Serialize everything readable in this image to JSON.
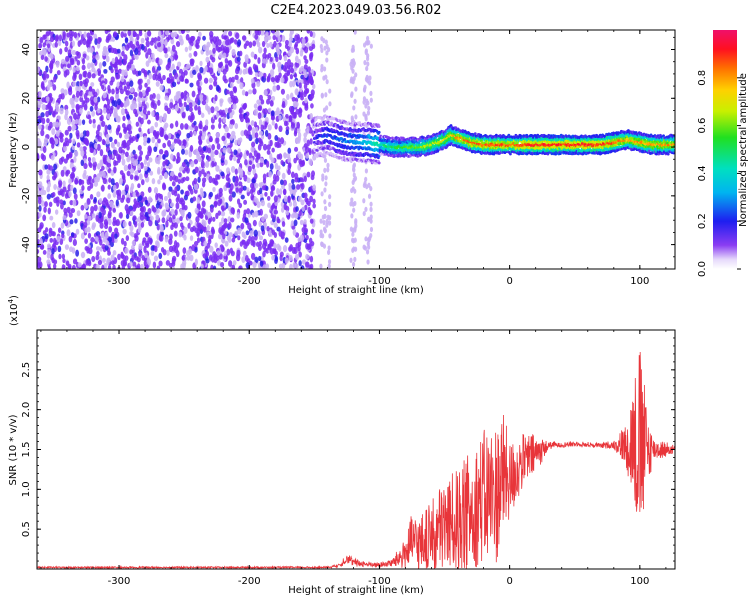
{
  "title": "C2E4.2023.049.03.56.R02",
  "colors": {
    "spectrum_dot": "#7a2cf2",
    "spectrum_dot_light": "#c9b0f5",
    "snr_line": "#e8353a",
    "axis": "#000000"
  },
  "colorbar": {
    "label": "Normalized spectral amplitude",
    "ticks": [
      "0.0",
      "0.2",
      "0.4",
      "0.6",
      "0.8"
    ],
    "tick_values": [
      0.0,
      0.2,
      0.4,
      0.6,
      0.8
    ],
    "range": [
      0,
      1
    ],
    "colormap": "hsv-rainbow (white/purple low to magenta high)"
  },
  "chart_data": [
    {
      "type": "heatmap",
      "title": "C2E4.2023.049.03.56.R02",
      "xlabel": "Height of straight line (km)",
      "ylabel": "Frequency (Hz)",
      "xlim": [
        -363,
        127
      ],
      "ylim": [
        -50,
        48
      ],
      "x_ticks": [
        -300,
        -200,
        -100,
        0,
        100
      ],
      "x_tick_labels": [
        "-300",
        "-200",
        "-100",
        "0",
        "100"
      ],
      "y_ticks": [
        -40,
        -20,
        0,
        20,
        40
      ],
      "y_tick_labels": [
        "-40",
        "-20",
        "0",
        "20",
        "40"
      ],
      "noise_region_x": [
        -363,
        -150
      ],
      "sparse_noise_x": [
        [
          -145,
          -138
        ],
        [
          -122,
          -118
        ],
        [
          -112,
          -106
        ]
      ],
      "signal_track": {
        "x": [
          -150,
          -140,
          -130,
          -120,
          -110,
          -100,
          -90,
          -80,
          -70,
          -60,
          -50,
          -45,
          -40,
          -30,
          -20,
          -10,
          0,
          20,
          40,
          60,
          70,
          80,
          90,
          100,
          110,
          127
        ],
        "y": [
          4,
          5,
          3,
          2,
          2,
          1,
          0,
          0,
          0,
          1,
          3,
          5,
          4,
          2,
          1,
          1,
          1,
          1,
          1,
          1,
          1,
          2,
          3,
          2,
          1,
          1
        ],
        "amp": [
          0.15,
          0.2,
          0.25,
          0.3,
          0.35,
          0.45,
          0.5,
          0.55,
          0.6,
          0.65,
          0.7,
          0.75,
          0.8,
          0.85,
          0.85,
          0.85,
          0.85,
          0.9,
          0.9,
          0.9,
          0.9,
          0.85,
          0.8,
          0.8,
          0.8,
          0.8
        ]
      }
    },
    {
      "type": "line",
      "xlabel": "Height of straight line (km)",
      "ylabel": "SNR (10 * v/v)",
      "y_multiplier": "(x10",
      "y_multiplier_exp": "4",
      "y_multiplier_close": ")",
      "xlim": [
        -363,
        127
      ],
      "ylim": [
        0,
        3.0
      ],
      "x_ticks": [
        -300,
        -200,
        -100,
        0,
        100
      ],
      "x_tick_labels": [
        "-300",
        "-200",
        "-100",
        "0",
        "100"
      ],
      "y_ticks": [
        0.5,
        1.0,
        1.5,
        2.0,
        2.5
      ],
      "y_tick_labels": [
        "0.5",
        "1.0",
        "1.5",
        "2.0",
        "2.5"
      ],
      "series": [
        {
          "color": "#e8353a",
          "x": [
            -363,
            -300,
            -200,
            -140,
            -130,
            -125,
            -120,
            -110,
            -100,
            -90,
            -80,
            -75,
            -70,
            -60,
            -50,
            -40,
            -30,
            -20,
            -10,
            -5,
            0,
            10,
            20,
            30,
            40,
            50,
            60,
            70,
            80,
            90,
            95,
            100,
            105,
            110,
            127
          ],
          "y": [
            0.02,
            0.02,
            0.02,
            0.02,
            0.05,
            0.15,
            0.08,
            0.06,
            0.05,
            0.08,
            0.2,
            0.35,
            0.3,
            0.4,
            0.55,
            0.6,
            0.75,
            0.9,
            0.95,
            1.2,
            1.1,
            1.35,
            1.45,
            1.55,
            1.56,
            1.57,
            1.56,
            1.55,
            1.56,
            1.55,
            1.6,
            1.55,
            1.5,
            1.5,
            1.5
          ],
          "noise_envelope": [
            0,
            0,
            0,
            0,
            0.02,
            0.08,
            0.05,
            0.03,
            0.03,
            0.05,
            0.2,
            0.35,
            0.35,
            0.45,
            0.6,
            0.65,
            0.75,
            0.85,
            0.9,
            0.8,
            0.5,
            0.35,
            0.25,
            0.05,
            0.03,
            0.03,
            0.03,
            0.03,
            0.05,
            0.3,
            0.8,
            1.3,
            0.6,
            0.15,
            0.05
          ]
        }
      ]
    }
  ]
}
